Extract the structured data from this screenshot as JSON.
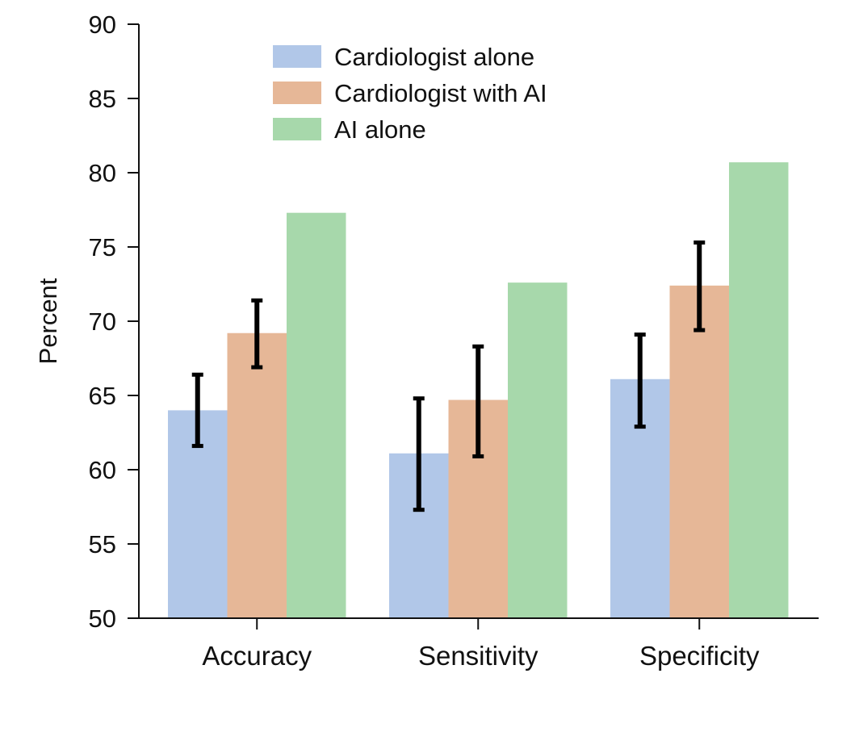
{
  "chart_data": {
    "type": "bar",
    "title": "",
    "xlabel": "",
    "ylabel": "Percent",
    "ylim": [
      50,
      90
    ],
    "yticks": [
      50,
      55,
      60,
      65,
      70,
      75,
      80,
      85,
      90
    ],
    "categories": [
      "Accuracy",
      "Sensitivity",
      "Specificity"
    ],
    "legend_position": "top-center",
    "series": [
      {
        "name": "Cardiologist alone",
        "color": "#b1c7e8",
        "values": [
          64.0,
          61.1,
          66.1
        ],
        "error_low": [
          61.6,
          57.3,
          62.9
        ],
        "error_high": [
          66.4,
          64.8,
          69.1
        ]
      },
      {
        "name": "Cardiologist with AI",
        "color": "#e6b797",
        "values": [
          69.2,
          64.7,
          72.4
        ],
        "error_low": [
          66.9,
          60.9,
          69.4
        ],
        "error_high": [
          71.4,
          68.3,
          75.3
        ]
      },
      {
        "name": "AI alone",
        "color": "#a7d8ab",
        "values": [
          77.3,
          72.6,
          80.7
        ],
        "error_low": null,
        "error_high": null
      }
    ]
  }
}
